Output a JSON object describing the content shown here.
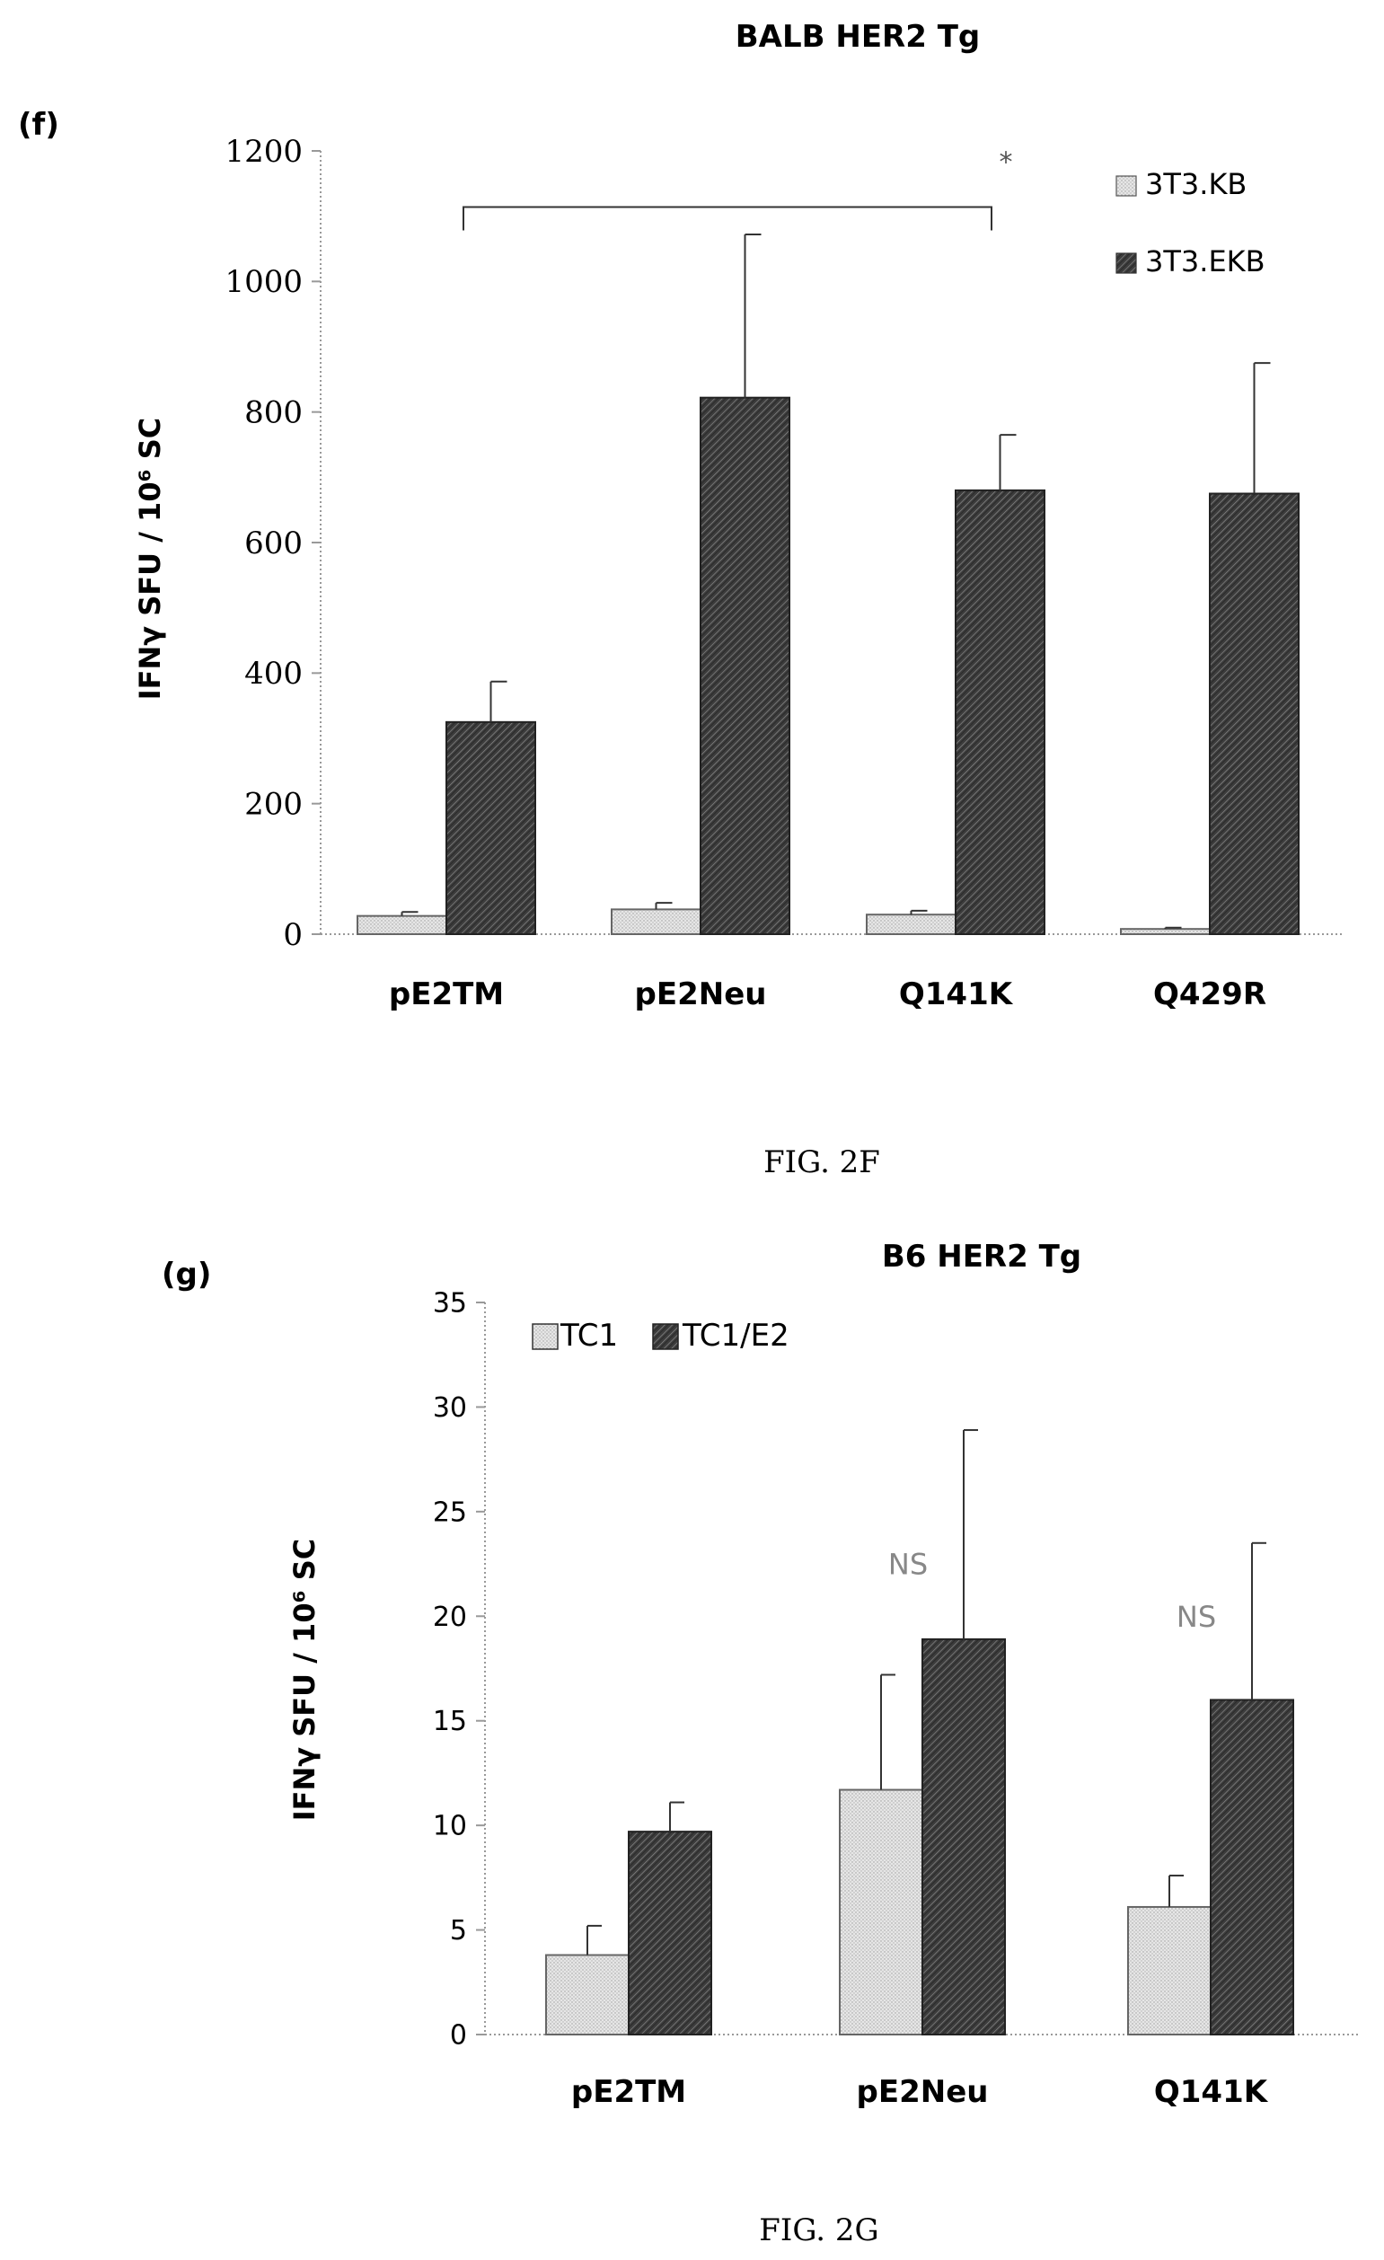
{
  "charts": [
    {
      "panel_label": "(f)",
      "caption": "FIG. 2F",
      "chart_data": {
        "type": "bar",
        "title": "BALB HER2 Tg",
        "ylabel": "IFNγ SFU / 10⁶ SC",
        "xlabel": "",
        "ylim": [
          0,
          1200
        ],
        "yticks": [
          "0",
          "200",
          "400",
          "600",
          "800",
          "1000",
          "1200"
        ],
        "categories": [
          "pE2TM",
          "pE2Neu",
          "Q141K",
          "Q429R"
        ],
        "series": [
          {
            "name": "3T3.KB",
            "color": "#e3e3e3",
            "values": [
              28,
              38,
              30,
              8
            ],
            "errors": [
              6,
              10,
              6,
              2
            ]
          },
          {
            "name": "3T3.EKB",
            "color": "#4a4a4a",
            "values": [
              325,
              822,
              680,
              675
            ],
            "errors": [
              62,
              250,
              85,
              200
            ]
          }
        ],
        "legend": "top-right",
        "grid": false,
        "annotations": [
          {
            "text": "*",
            "type": "significance-bracket",
            "from": "pE2TM",
            "to": "Q141K",
            "y": 1125
          }
        ]
      }
    },
    {
      "panel_label": "(g)",
      "caption": "FIG. 2G",
      "chart_data": {
        "type": "bar",
        "title": "B6 HER2 Tg",
        "ylabel": "IFNγ SFU / 10⁶ SC",
        "xlabel": "",
        "ylim": [
          0,
          35
        ],
        "yticks": [
          "0",
          "5",
          "10",
          "15",
          "20",
          "25",
          "30",
          "35"
        ],
        "categories": [
          "pE2TM",
          "pE2Neu",
          "Q141K"
        ],
        "series": [
          {
            "name": "TC1",
            "color": "#e3e3e3",
            "values": [
              3.8,
              11.7,
              6.1
            ],
            "errors": [
              1.4,
              5.5,
              1.5
            ]
          },
          {
            "name": "TC1/E2",
            "color": "#4a4a4a",
            "values": [
              9.7,
              18.9,
              16.0
            ],
            "errors": [
              1.4,
              10.0,
              7.5
            ]
          }
        ],
        "legend": "top-left",
        "grid": false,
        "annotations": [
          {
            "text": "NS",
            "category": "pE2Neu",
            "y": 22
          },
          {
            "text": "NS",
            "category": "Q141K",
            "y": 19.5
          }
        ]
      }
    }
  ]
}
